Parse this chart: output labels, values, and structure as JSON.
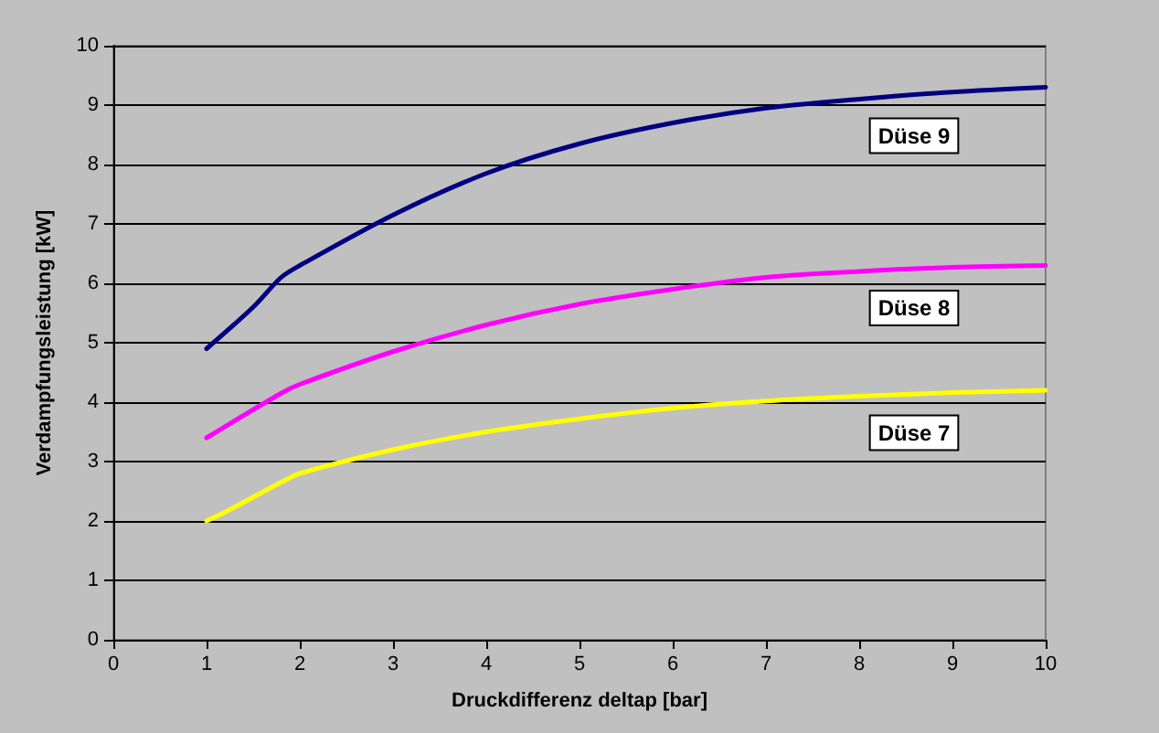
{
  "chart_data": {
    "type": "line",
    "xlabel": "Druckdifferenz deltap [bar]",
    "ylabel": "Verdampfungsleistung [kW]",
    "xlim": [
      0,
      10
    ],
    "xticks": [
      0,
      1,
      2,
      3,
      4,
      5,
      6,
      7,
      8,
      9,
      10
    ],
    "ylim": [
      0,
      10
    ],
    "yticks": [
      0,
      1,
      2,
      3,
      4,
      5,
      6,
      7,
      8,
      9,
      10
    ],
    "grid": "y",
    "legend": false,
    "marker": "none",
    "line_style": "solid",
    "series": [
      {
        "name": "Düse 9",
        "color": "#000080",
        "x": [
          1,
          1.5,
          1.8,
          2,
          3,
          4,
          5,
          6,
          7,
          8,
          9,
          10
        ],
        "values": [
          4.9,
          5.6,
          6.1,
          6.3,
          7.15,
          7.85,
          8.35,
          8.7,
          8.95,
          9.1,
          9.22,
          9.3
        ]
      },
      {
        "name": "Düse 8",
        "color": "#ff00ff",
        "x": [
          1,
          1.8,
          2,
          3,
          4,
          5,
          6,
          7,
          8,
          9,
          10
        ],
        "values": [
          3.4,
          4.15,
          4.3,
          4.85,
          5.3,
          5.65,
          5.9,
          6.1,
          6.2,
          6.27,
          6.3
        ]
      },
      {
        "name": "Düse 7",
        "color": "#ffff00",
        "x": [
          1,
          1.2,
          1.8,
          2,
          3,
          4,
          5,
          6,
          7,
          8,
          9,
          10
        ],
        "values": [
          2.0,
          2.15,
          2.65,
          2.8,
          3.2,
          3.5,
          3.72,
          3.9,
          4.02,
          4.1,
          4.16,
          4.2
        ]
      }
    ]
  }
}
